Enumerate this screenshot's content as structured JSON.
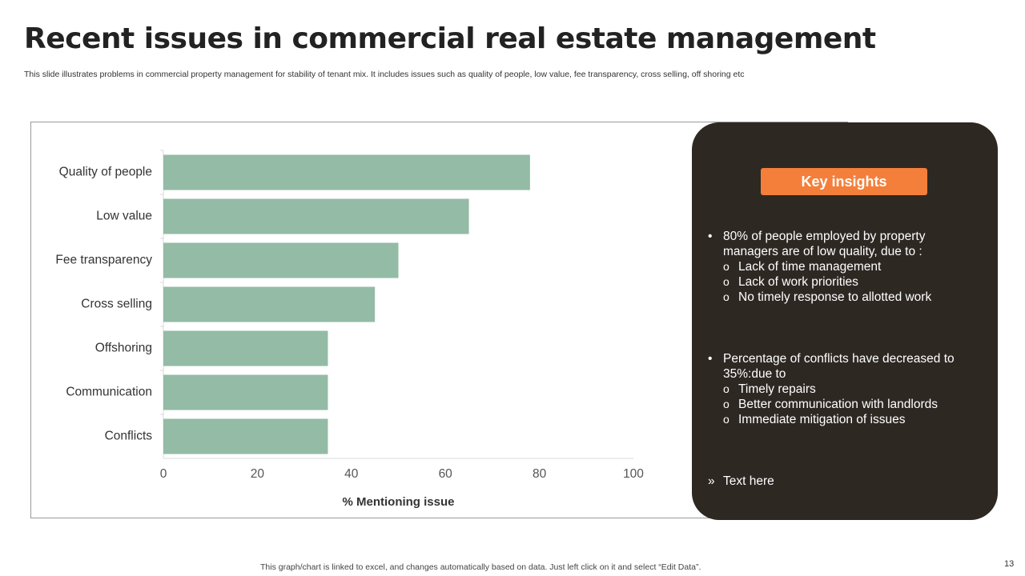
{
  "slide": {
    "title": "Recent issues in commercial real estate management",
    "subtitle": "This slide illustrates problems in commercial property management for stability of tenant mix. It includes issues such as quality of people, low value, fee transparency, cross selling, off shoring etc",
    "footer_note": "This graph/chart is linked to excel,  and changes automatically based on data. Just left click on it and select “Edit Data”.",
    "page_number": "13"
  },
  "colors": {
    "bar": "#93bba5",
    "insights_panel": "#2e2823",
    "insights_header": "#f47f3a"
  },
  "chart_data": {
    "type": "bar",
    "orientation": "horizontal",
    "categories": [
      "Quality of people",
      "Low value",
      "Fee transparency",
      "Cross selling",
      "Offshoring",
      "Communication",
      "Conflicts"
    ],
    "values": [
      78,
      65,
      50,
      45,
      35,
      35,
      35
    ],
    "xlabel": "% Mentioning issue",
    "xlim": [
      0,
      100
    ],
    "xticks": [
      0,
      20,
      40,
      60,
      80,
      100
    ],
    "grid": false,
    "legend": false
  },
  "insights": {
    "header": "Key insights",
    "blocks": [
      {
        "bullet": "•",
        "text": "80% of people employed by property managers are of low quality, due to :",
        "sub_marker": "o",
        "subitems": [
          "Lack of time management",
          "Lack of work priorities",
          "No timely response to allotted work"
        ]
      },
      {
        "bullet": "•",
        "text": "Percentage of conflicts have decreased to 35%:due to",
        "sub_marker": "o",
        "subitems": [
          "Timely repairs",
          "Better communication with landlords",
          "Immediate mitigation of issues"
        ]
      },
      {
        "bullet": "»",
        "text": "Text here",
        "subitems": []
      }
    ]
  }
}
